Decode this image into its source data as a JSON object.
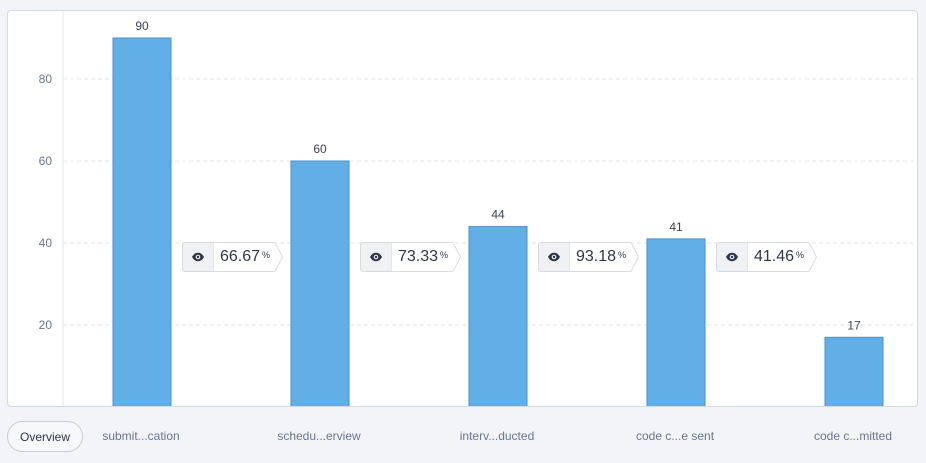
{
  "overview_label": "Overview",
  "colors": {
    "bar": "#62aee6",
    "bar_border": "#4a90c8",
    "grid": "#dde0e7"
  },
  "chart_data": {
    "type": "bar",
    "categories": [
      "submit...cation",
      "schedu...erview",
      "interv...ducted",
      "code c...e sent",
      "code c...mitted"
    ],
    "values": [
      90,
      60,
      44,
      41,
      17
    ],
    "data_labels": [
      "90",
      "60",
      "44",
      "41",
      "17"
    ],
    "yticks": [
      20,
      40,
      60,
      80
    ],
    "ylim": [
      0,
      96
    ],
    "grid": true,
    "conversions": [
      {
        "value": "66.67",
        "unit": "%",
        "icon": "eye-icon"
      },
      {
        "value": "73.33",
        "unit": "%",
        "icon": "eye-icon"
      },
      {
        "value": "93.18",
        "unit": "%",
        "icon": "eye-icon"
      },
      {
        "value": "41.46",
        "unit": "%",
        "icon": "eye-icon"
      }
    ]
  }
}
